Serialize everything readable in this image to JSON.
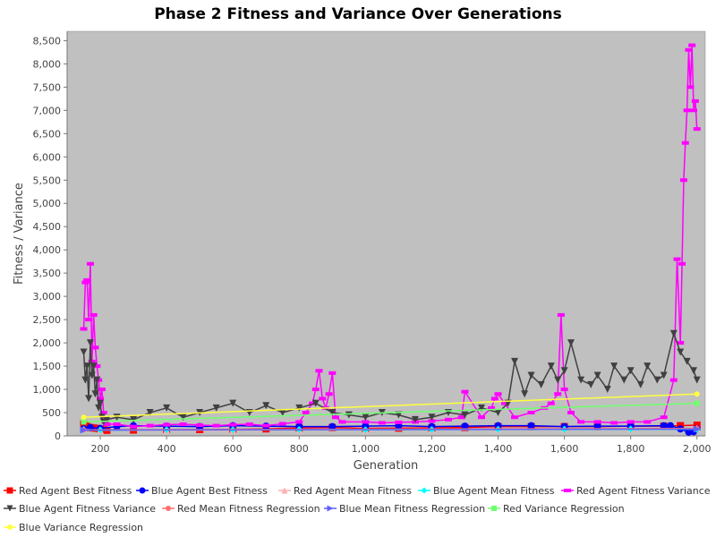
{
  "chart_data": {
    "type": "line",
    "title": "Phase 2 Fitness and Variance Over Generations",
    "xlabel": "Generation",
    "ylabel": "Fitness / Variance",
    "xlim": [
      100,
      2025
    ],
    "ylim": [
      0,
      8700
    ],
    "xticks": [
      200,
      400,
      600,
      800,
      1000,
      1200,
      1400,
      1600,
      1800,
      2000
    ],
    "xtick_labels": [
      "200",
      "400",
      "600",
      "800",
      "1,000",
      "1,200",
      "1,400",
      "1,600",
      "1,800",
      "2,000"
    ],
    "yticks": [
      0,
      500,
      1000,
      1500,
      2000,
      2500,
      3000,
      3500,
      4000,
      4500,
      5000,
      5500,
      6000,
      6500,
      7000,
      7500,
      8000,
      8500
    ],
    "ytick_labels": [
      "0",
      "500",
      "1,000",
      "1,500",
      "2,000",
      "2,500",
      "3,000",
      "3,500",
      "4,000",
      "4,500",
      "5,000",
      "5,500",
      "6,000",
      "6,500",
      "7,000",
      "7,500",
      "8,000",
      "8,500"
    ],
    "grid": false,
    "plot_background": "#c0c0c0",
    "legend_position": "bottom",
    "series": [
      {
        "name": "Red Agent Best Fitness",
        "color": "#ff0000",
        "marker": "square",
        "x": [
          150,
          155,
          160,
          170,
          180,
          190,
          200,
          210,
          220,
          300,
          400,
          500,
          600,
          700,
          800,
          900,
          1000,
          1100,
          1200,
          1300,
          1400,
          1500,
          1600,
          1700,
          1800,
          1900,
          1950,
          2000
        ],
        "values": [
          250,
          230,
          200,
          180,
          170,
          160,
          150,
          130,
          120,
          125,
          130,
          135,
          140,
          150,
          170,
          180,
          160,
          165,
          170,
          180,
          200,
          200,
          200,
          200,
          210,
          210,
          220,
          230
        ]
      },
      {
        "name": "Blue Agent Best Fitness",
        "color": "#0000ff",
        "marker": "circle",
        "x": [
          150,
          170,
          200,
          250,
          300,
          400,
          500,
          600,
          700,
          800,
          900,
          1000,
          1100,
          1200,
          1300,
          1400,
          1500,
          1600,
          1700,
          1800,
          1900,
          1920,
          1950,
          1975,
          1990,
          2000
        ],
        "values": [
          150,
          180,
          160,
          200,
          220,
          210,
          200,
          220,
          210,
          200,
          200,
          210,
          220,
          200,
          210,
          220,
          220,
          200,
          210,
          210,
          220,
          220,
          150,
          80,
          90,
          150
        ]
      },
      {
        "name": "Red Agent Mean Fitness",
        "color": "#ffafaf",
        "marker": "triangle-up",
        "x": [
          150,
          200,
          400,
          600,
          800,
          1000,
          1200,
          1400,
          1600,
          1800,
          2000
        ],
        "values": [
          140,
          120,
          120,
          125,
          130,
          125,
          130,
          140,
          150,
          150,
          160
        ]
      },
      {
        "name": "Blue Agent Mean Fitness",
        "color": "#00ffff",
        "marker": "diamond",
        "x": [
          150,
          200,
          400,
          600,
          800,
          1000,
          1200,
          1400,
          1600,
          1800,
          2000
        ],
        "values": [
          130,
          125,
          130,
          130,
          135,
          130,
          135,
          140,
          140,
          145,
          140
        ]
      },
      {
        "name": "Red Agent Fitness Variance",
        "color": "#ff00ff",
        "marker": "rect-h",
        "x": [
          150,
          155,
          160,
          165,
          170,
          175,
          180,
          185,
          190,
          195,
          200,
          205,
          210,
          215,
          220,
          250,
          300,
          350,
          400,
          450,
          500,
          550,
          600,
          650,
          700,
          750,
          800,
          820,
          840,
          850,
          860,
          870,
          880,
          890,
          900,
          910,
          930,
          1000,
          1050,
          1100,
          1150,
          1200,
          1250,
          1290,
          1300,
          1350,
          1380,
          1390,
          1400,
          1420,
          1450,
          1500,
          1540,
          1560,
          1580,
          1590,
          1600,
          1620,
          1650,
          1700,
          1750,
          1800,
          1850,
          1900,
          1930,
          1940,
          1950,
          1955,
          1960,
          1965,
          1970,
          1975,
          1980,
          1985,
          1990,
          1995,
          2000
        ],
        "values": [
          2300,
          3300,
          3350,
          2500,
          3700,
          1600,
          2600,
          1900,
          1500,
          1200,
          800,
          1000,
          500,
          300,
          250,
          250,
          200,
          220,
          240,
          250,
          230,
          220,
          240,
          250,
          220,
          260,
          300,
          500,
          700,
          1000,
          1400,
          800,
          600,
          900,
          1350,
          400,
          300,
          300,
          280,
          290,
          300,
          320,
          350,
          400,
          950,
          400,
          600,
          800,
          900,
          700,
          400,
          500,
          600,
          700,
          900,
          2600,
          1000,
          500,
          300,
          300,
          280,
          300,
          300,
          400,
          1200,
          3800,
          2000,
          3700,
          5500,
          6300,
          7000,
          8300,
          7500,
          8400,
          7000,
          7200,
          6600
        ]
      },
      {
        "name": "Blue Agent Fitness Variance",
        "color": "#404040",
        "marker": "triangle-down",
        "x": [
          150,
          155,
          160,
          165,
          170,
          175,
          180,
          185,
          190,
          195,
          200,
          205,
          210,
          220,
          250,
          300,
          350,
          400,
          450,
          500,
          550,
          600,
          650,
          700,
          750,
          800,
          850,
          900,
          950,
          1000,
          1050,
          1100,
          1150,
          1200,
          1250,
          1300,
          1350,
          1400,
          1430,
          1450,
          1480,
          1500,
          1530,
          1560,
          1580,
          1600,
          1620,
          1650,
          1680,
          1700,
          1730,
          1750,
          1780,
          1800,
          1830,
          1850,
          1880,
          1900,
          1930,
          1950,
          1970,
          1990,
          2000
        ],
        "values": [
          1800,
          1200,
          1500,
          800,
          2000,
          1300,
          1500,
          900,
          1200,
          600,
          700,
          400,
          300,
          350,
          400,
          350,
          500,
          600,
          400,
          500,
          600,
          700,
          500,
          650,
          500,
          600,
          700,
          500,
          450,
          400,
          500,
          450,
          350,
          400,
          500,
          450,
          600,
          500,
          700,
          1600,
          900,
          1300,
          1100,
          1500,
          1200,
          1400,
          2000,
          1200,
          1100,
          1300,
          1000,
          1500,
          1200,
          1400,
          1100,
          1500,
          1200,
          1300,
          2200,
          1800,
          1600,
          1400,
          1200
        ]
      },
      {
        "name": "Red Mean Fitness Regression",
        "color": "#ff7070",
        "marker": "circle-small",
        "x": [
          150,
          2000
        ],
        "values": [
          130,
          160
        ]
      },
      {
        "name": "Blue Mean Fitness Regression",
        "color": "#6060ff",
        "marker": "triangle-right",
        "x": [
          150,
          2000
        ],
        "values": [
          125,
          145
        ]
      },
      {
        "name": "Red Variance Regression",
        "color": "#70ff70",
        "marker": "square-small",
        "x": [
          150,
          2000
        ],
        "values": [
          300,
          700
        ]
      },
      {
        "name": "Blue Variance Regression",
        "color": "#ffff40",
        "marker": "circle-small",
        "x": [
          150,
          2000
        ],
        "values": [
          400,
          900
        ]
      }
    ]
  }
}
